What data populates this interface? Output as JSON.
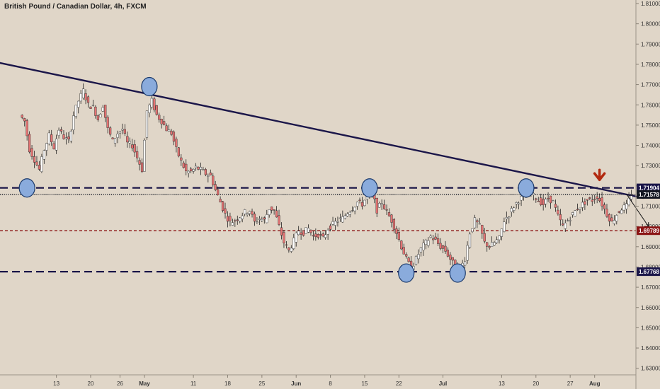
{
  "chart_data": {
    "type": "candlestick",
    "title": "British Pound / Canadian Dollar, 4h, FXCM",
    "y_axis": {
      "ylim": [
        1.626,
        1.812
      ],
      "ticks": [
        "1.81000",
        "1.80000",
        "1.79000",
        "1.78000",
        "1.77000",
        "1.76000",
        "1.75000",
        "1.74000",
        "1.73000",
        "1.72000",
        "1.71000",
        "1.70000",
        "1.69000",
        "1.68000",
        "1.67000",
        "1.66000",
        "1.65000",
        "1.64000",
        "1.63000"
      ],
      "tick_values": [
        1.81,
        1.8,
        1.79,
        1.78,
        1.77,
        1.76,
        1.75,
        1.74,
        1.73,
        1.72,
        1.71,
        1.7,
        1.69,
        1.68,
        1.67,
        1.66,
        1.65,
        1.64,
        1.63
      ]
    },
    "x_axis": {
      "labels": [
        "13",
        "20",
        "26",
        "May",
        "11",
        "18",
        "25",
        "Jun",
        "8",
        "15",
        "22",
        "Jul",
        "13",
        "20",
        "27",
        "Aug"
      ],
      "bold": [
        "May",
        "Jun",
        "Jul",
        "Aug"
      ],
      "days": [
        -18,
        -11,
        -5,
        0,
        10,
        17,
        24,
        31,
        38,
        45,
        52,
        61,
        73,
        80,
        87,
        92
      ]
    },
    "series": [
      {
        "name": "GBPCAD",
        "points": [
          [
            -25,
            1.752
          ],
          [
            -24,
            1.738
          ],
          [
            -23,
            1.733
          ],
          [
            -22,
            1.728
          ],
          [
            -21,
            1.738
          ],
          [
            -20,
            1.745
          ],
          [
            -19,
            1.739
          ],
          [
            -18,
            1.748
          ],
          [
            -17,
            1.744
          ],
          [
            -16,
            1.742
          ],
          [
            -15,
            1.755
          ],
          [
            -14,
            1.762
          ],
          [
            -13,
            1.767
          ],
          [
            -12,
            1.76
          ],
          [
            -11,
            1.759
          ],
          [
            -10,
            1.753
          ],
          [
            -9,
            1.76
          ],
          [
            -8,
            1.748
          ],
          [
            -7,
            1.742
          ],
          [
            -6,
            1.746
          ],
          [
            -5,
            1.748
          ],
          [
            -4,
            1.741
          ],
          [
            -3,
            1.74
          ],
          [
            -2,
            1.734
          ],
          [
            -1,
            1.728
          ],
          [
            0,
            1.757
          ],
          [
            1,
            1.762
          ],
          [
            2,
            1.755
          ],
          [
            3,
            1.752
          ],
          [
            4,
            1.748
          ],
          [
            5,
            1.746
          ],
          [
            6,
            1.738
          ],
          [
            7,
            1.732
          ],
          [
            8,
            1.727
          ],
          [
            9,
            1.727
          ],
          [
            10,
            1.729
          ],
          [
            11,
            1.728
          ],
          [
            12,
            1.726
          ],
          [
            13,
            1.725
          ],
          [
            14,
            1.718
          ],
          [
            15,
            1.712
          ],
          [
            16,
            1.706
          ],
          [
            17,
            1.702
          ],
          [
            18,
            1.703
          ],
          [
            19,
            1.705
          ],
          [
            20,
            1.707
          ],
          [
            21,
            1.708
          ],
          [
            22,
            1.702
          ],
          [
            23,
            1.704
          ],
          [
            24,
            1.703
          ],
          [
            25,
            1.709
          ],
          [
            26,
            1.708
          ],
          [
            27,
            1.7
          ],
          [
            28,
            1.692
          ],
          [
            29,
            1.688
          ],
          [
            30,
            1.693
          ],
          [
            31,
            1.698
          ],
          [
            32,
            1.697
          ],
          [
            33,
            1.699
          ],
          [
            34,
            1.695
          ],
          [
            35,
            1.696
          ],
          [
            36,
            1.694
          ],
          [
            37,
            1.699
          ],
          [
            38,
            1.701
          ],
          [
            39,
            1.703
          ],
          [
            40,
            1.704
          ],
          [
            41,
            1.707
          ],
          [
            42,
            1.709
          ],
          [
            43,
            1.712
          ],
          [
            44,
            1.711
          ],
          [
            45,
            1.715
          ],
          [
            46,
            1.717
          ],
          [
            47,
            1.708
          ],
          [
            48,
            1.712
          ],
          [
            49,
            1.707
          ],
          [
            50,
            1.703
          ],
          [
            51,
            1.697
          ],
          [
            52,
            1.69
          ],
          [
            53,
            1.684
          ],
          [
            54,
            1.679
          ],
          [
            55,
            1.684
          ],
          [
            56,
            1.689
          ],
          [
            57,
            1.692
          ],
          [
            58,
            1.695
          ],
          [
            59,
            1.693
          ],
          [
            60,
            1.69
          ],
          [
            61,
            1.688
          ],
          [
            62,
            1.684
          ],
          [
            63,
            1.68
          ],
          [
            64,
            1.679
          ],
          [
            65,
            1.684
          ],
          [
            66,
            1.697
          ],
          [
            67,
            1.703
          ],
          [
            68,
            1.7
          ],
          [
            69,
            1.692
          ],
          [
            70,
            1.69
          ],
          [
            71,
            1.692
          ],
          [
            72,
            1.694
          ],
          [
            73,
            1.703
          ],
          [
            74,
            1.706
          ],
          [
            75,
            1.71
          ],
          [
            76,
            1.713
          ],
          [
            77,
            1.715
          ],
          [
            78,
            1.718
          ],
          [
            79,
            1.715
          ],
          [
            80,
            1.713
          ],
          [
            81,
            1.711
          ],
          [
            82,
            1.714
          ],
          [
            83,
            1.712
          ],
          [
            84,
            1.705
          ],
          [
            85,
            1.7
          ],
          [
            86,
            1.703
          ],
          [
            87,
            1.706
          ],
          [
            88,
            1.709
          ],
          [
            89,
            1.711
          ],
          [
            90,
            1.713
          ],
          [
            91,
            1.713
          ],
          [
            92,
            1.715
          ],
          [
            93,
            1.711
          ],
          [
            94,
            1.706
          ],
          [
            95,
            1.702
          ],
          [
            96,
            1.706
          ],
          [
            97,
            1.709
          ],
          [
            98,
            1.71
          ],
          [
            99,
            1.716
          ]
        ]
      }
    ],
    "price_labels": [
      {
        "value": 1.71904,
        "text": "1.71904",
        "bg": "#1b1649"
      },
      {
        "value": 1.71578,
        "text": "1.71578",
        "bg": "#131722"
      },
      {
        "value": 1.69789,
        "text": "1.69789",
        "bg": "#8b1414"
      },
      {
        "value": 1.67768,
        "text": "1.67768",
        "bg": "#1b1649"
      }
    ],
    "horizontal_lines": [
      {
        "value": 1.71904,
        "style": "dashed",
        "color": "#1b1649"
      },
      {
        "value": 1.71578,
        "style": "dotted",
        "color": "#131722"
      },
      {
        "value": 1.69789,
        "style": "dashed",
        "color": "#8b1414"
      },
      {
        "value": 1.67768,
        "style": "dashed",
        "color": "#1b1649"
      }
    ],
    "trendline": {
      "from": [
        -40,
        1.786
      ],
      "to": [
        102,
        1.714
      ],
      "color": "#1b1649"
    },
    "markers": [
      {
        "day": -24,
        "value": 1.719
      },
      {
        "day": 1,
        "value": 1.769
      },
      {
        "day": 46,
        "value": 1.719
      },
      {
        "day": 53.5,
        "value": 1.677
      },
      {
        "day": 64,
        "value": 1.677
      },
      {
        "day": 78,
        "value": 1.719
      }
    ],
    "down_arrow": {
      "day": 93,
      "value": 1.723,
      "color": "#b22a10"
    },
    "projection": {
      "from": [
        98.5,
        1.716
      ],
      "to": [
        103,
        1.7
      ]
    },
    "colors": {
      "bull": "#ffffff",
      "bear": "#e57373",
      "wick": "#222222",
      "marker_fill": "#8aabdc",
      "marker_stroke": "#1b3a6b"
    }
  }
}
